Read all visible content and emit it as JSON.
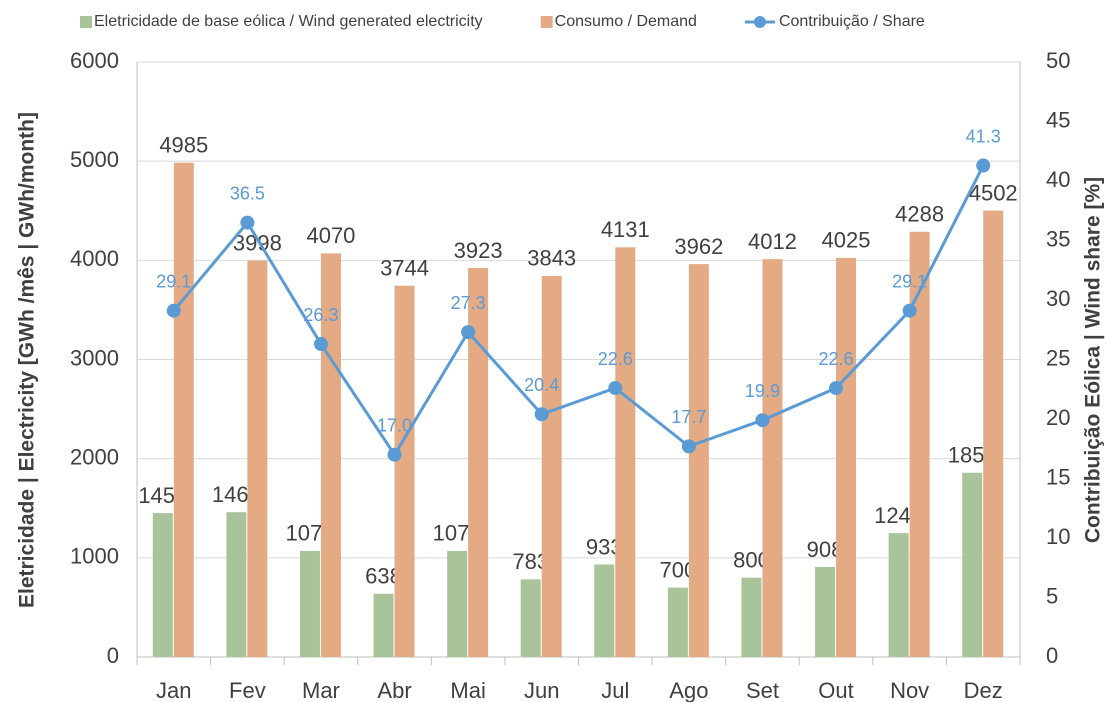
{
  "chart_data": {
    "type": "bar",
    "categories": [
      "Jan",
      "Fev",
      "Mar",
      "Abr",
      "Mai",
      "Jun",
      "Jul",
      "Ago",
      "Set",
      "Out",
      "Nov",
      "Dez"
    ],
    "series": [
      {
        "name": "Eletricidade de base eólica / Wind generated electricity",
        "color": "#a9c49a",
        "values": [
          1451,
          1460,
          1070,
          638,
          1070,
          783,
          933,
          700,
          800,
          908,
          1249,
          1858
        ]
      },
      {
        "name": "Consumo / Demand",
        "color": "#e4aa84",
        "values": [
          4985,
          3998,
          4070,
          3744,
          3923,
          3843,
          4131,
          3962,
          4012,
          4025,
          4288,
          4502
        ]
      },
      {
        "name": "Contribuição / Share",
        "color": "#5b9bd5",
        "type": "line",
        "axis": "y2",
        "values": [
          29.1,
          36.5,
          26.3,
          17.0,
          27.3,
          20.4,
          22.6,
          17.7,
          19.9,
          22.6,
          29.1,
          41.3
        ],
        "value_labels": [
          "29.1",
          "36.5",
          "26.3",
          "17.0",
          "27.3",
          "20.4",
          "22.6",
          "17.7",
          "19.9",
          "22.6",
          "29.1",
          "41.3"
        ]
      }
    ],
    "y_label": "Eletricidade | Electricity [GWh /mês | GWh/month]",
    "y2_label": "Contribuição Eólica | Wind share [%]",
    "ylim": [
      0,
      6000
    ],
    "yticks": [
      0,
      1000,
      2000,
      3000,
      4000,
      5000,
      6000
    ],
    "y2lim": [
      0,
      50
    ],
    "y2ticks": [
      0,
      5,
      10,
      15,
      20,
      25,
      30,
      35,
      40,
      45,
      50
    ],
    "grid": true,
    "legend": "top"
  }
}
